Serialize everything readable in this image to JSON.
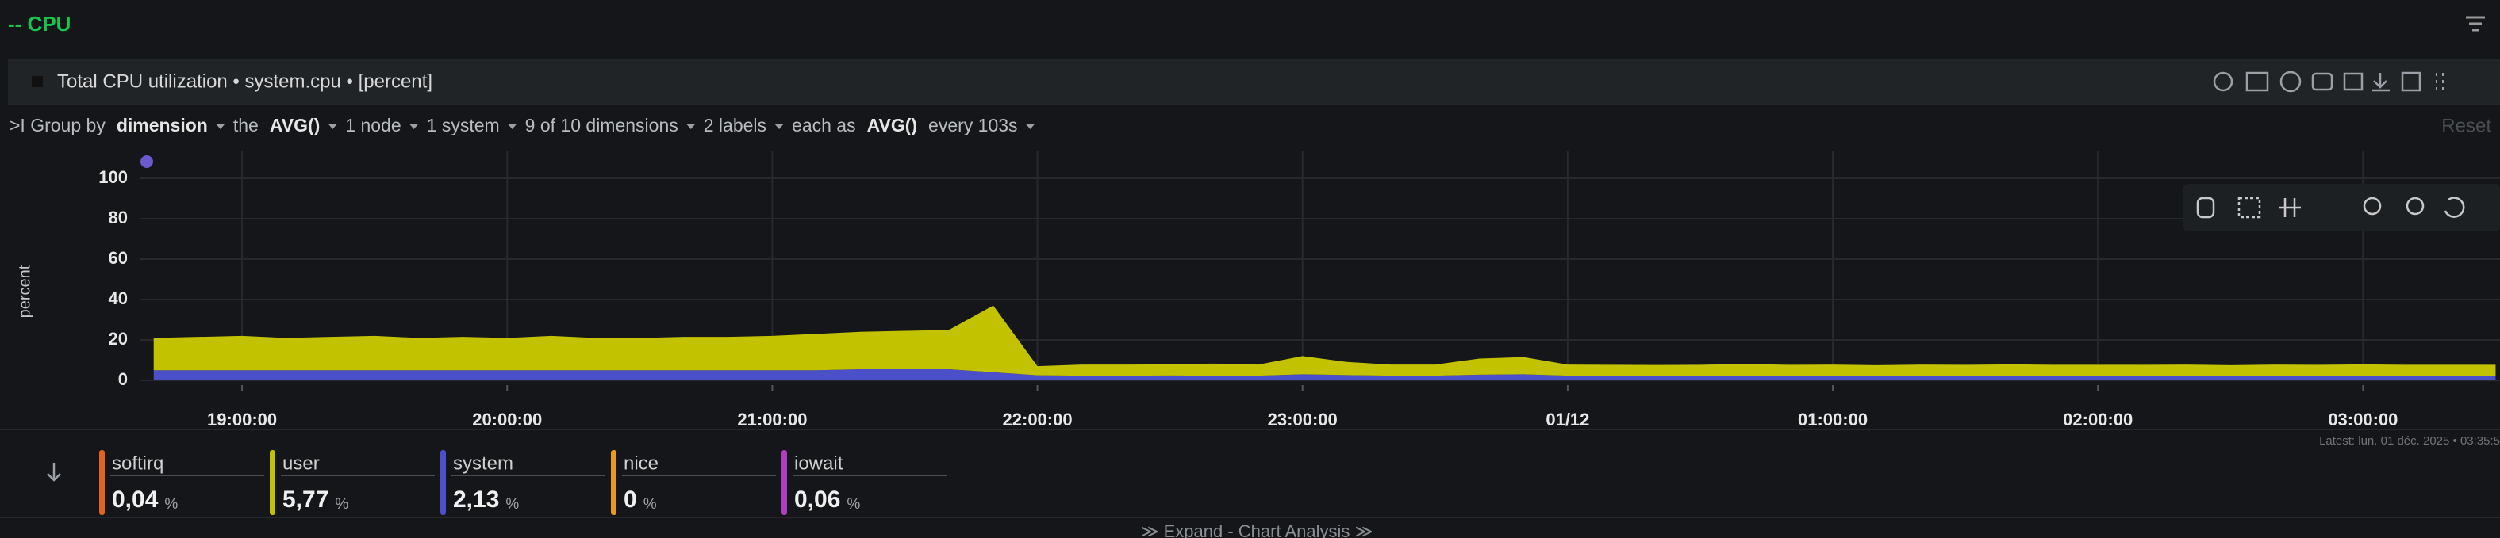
{
  "section_title": "-- CPU",
  "panel": {
    "title": "Total CPU utilization • system.cpu • [percent]"
  },
  "toolbar": {
    "items": [
      {
        "text": ">I Group by",
        "bold": false,
        "caret": false
      },
      {
        "text": "dimension",
        "bold": true,
        "caret": true
      },
      {
        "text": "the",
        "bold": false,
        "caret": false
      },
      {
        "text": "AVG()",
        "bold": true,
        "caret": true
      },
      {
        "text": "1 node",
        "bold": false,
        "caret": true
      },
      {
        "text": "1 system",
        "bold": false,
        "caret": true
      },
      {
        "text": "9 of 10 dimensions",
        "bold": false,
        "caret": true
      },
      {
        "text": "2 labels",
        "bold": false,
        "caret": true
      },
      {
        "text": "each as",
        "bold": false,
        "caret": false
      },
      {
        "text": "AVG()",
        "bold": true,
        "caret": false
      },
      {
        "text": "every 103s",
        "bold": false,
        "caret": true
      }
    ],
    "reset": "Reset"
  },
  "chart_data": {
    "type": "area",
    "stacked": true,
    "ylabel": "percent",
    "grid": true,
    "x": [
      "18:40",
      "18:50",
      "19:00",
      "19:10",
      "19:20",
      "19:30",
      "19:40",
      "19:50",
      "20:00",
      "20:10",
      "20:20",
      "20:30",
      "20:40",
      "20:50",
      "21:00",
      "21:10",
      "21:20",
      "21:30",
      "21:40",
      "21:50",
      "22:00",
      "22:10",
      "22:20",
      "22:30",
      "22:40",
      "22:50",
      "23:00",
      "23:10",
      "23:20",
      "23:30",
      "23:40",
      "23:50",
      "00:00",
      "00:10",
      "00:20",
      "00:30",
      "00:40",
      "00:50",
      "01:00",
      "01:10",
      "01:20",
      "01:30",
      "01:40",
      "01:50",
      "02:00",
      "02:10",
      "02:20",
      "02:30",
      "02:40",
      "02:50",
      "03:00",
      "03:10",
      "03:20",
      "03:30"
    ],
    "series": [
      {
        "name": "system",
        "color": "#4b4fc8",
        "values": [
          5,
          5,
          5,
          5,
          5,
          5,
          5,
          5,
          5,
          5,
          5,
          5,
          5,
          5,
          5,
          5,
          5.5,
          5.5,
          5.5,
          4,
          2.5,
          2.3,
          2.3,
          2.4,
          2.3,
          2.3,
          3,
          2.6,
          2.3,
          2.3,
          2.8,
          3,
          2.3,
          2.2,
          2.3,
          2.2,
          2.3,
          2.2,
          2.3,
          2.2,
          2.3,
          2.2,
          2.3,
          2.2,
          2.3,
          2.2,
          2.3,
          2.2,
          2.3,
          2.2,
          2.3,
          2.2,
          2.3,
          2.2
        ]
      },
      {
        "name": "user",
        "color": "#c2c200",
        "values": [
          16,
          16.5,
          17,
          16,
          16.5,
          17,
          16,
          16.5,
          16,
          17,
          16,
          16,
          16.5,
          16.5,
          17,
          18,
          18.5,
          19,
          19.5,
          33,
          4.5,
          5.5,
          5.5,
          5.5,
          6,
          5.5,
          9,
          6.5,
          5.5,
          5.5,
          8,
          8.5,
          5.5,
          5.5,
          5.3,
          5.5,
          5.8,
          5.5,
          5.5,
          5.3,
          5.5,
          5.5,
          5.6,
          5.5,
          5.4,
          5.5,
          5.5,
          5.3,
          5.5,
          5.5,
          5.6,
          5.5,
          5.4,
          5.5
        ]
      }
    ],
    "xlim": [
      "18:37",
      "03:31"
    ],
    "xticks": [
      {
        "value": "19:00",
        "label": "19:00:00"
      },
      {
        "value": "20:00",
        "label": "20:00:00"
      },
      {
        "value": "21:00",
        "label": "21:00:00"
      },
      {
        "value": "22:00",
        "label": "22:00:00"
      },
      {
        "value": "23:00",
        "label": "23:00:00"
      },
      {
        "value": "00:00",
        "label": "01/12"
      },
      {
        "value": "01:00",
        "label": "01:00:00"
      },
      {
        "value": "02:00",
        "label": "02:00:00"
      },
      {
        "value": "03:00",
        "label": "03:00:00"
      }
    ],
    "ylim": [
      0,
      100
    ],
    "yticks": [
      0,
      20,
      40,
      60,
      80,
      100
    ]
  },
  "latest": "Latest: lun. 01 déc. 2025 • 03:35:5",
  "legend": [
    {
      "name": "softirq",
      "value": "0,04",
      "unit": "%",
      "color": "#e0641c"
    },
    {
      "name": "user",
      "value": "5,77",
      "unit": "%",
      "color": "#c2c200"
    },
    {
      "name": "system",
      "value": "2,13",
      "unit": "%",
      "color": "#4b4fc8"
    },
    {
      "name": "nice",
      "value": "0",
      "unit": "%",
      "color": "#e89a1c"
    },
    {
      "name": "iowait",
      "value": "0,06",
      "unit": "%",
      "color": "#b03cc0"
    }
  ],
  "expand": "≫ Expand - Chart Analysis ≫"
}
